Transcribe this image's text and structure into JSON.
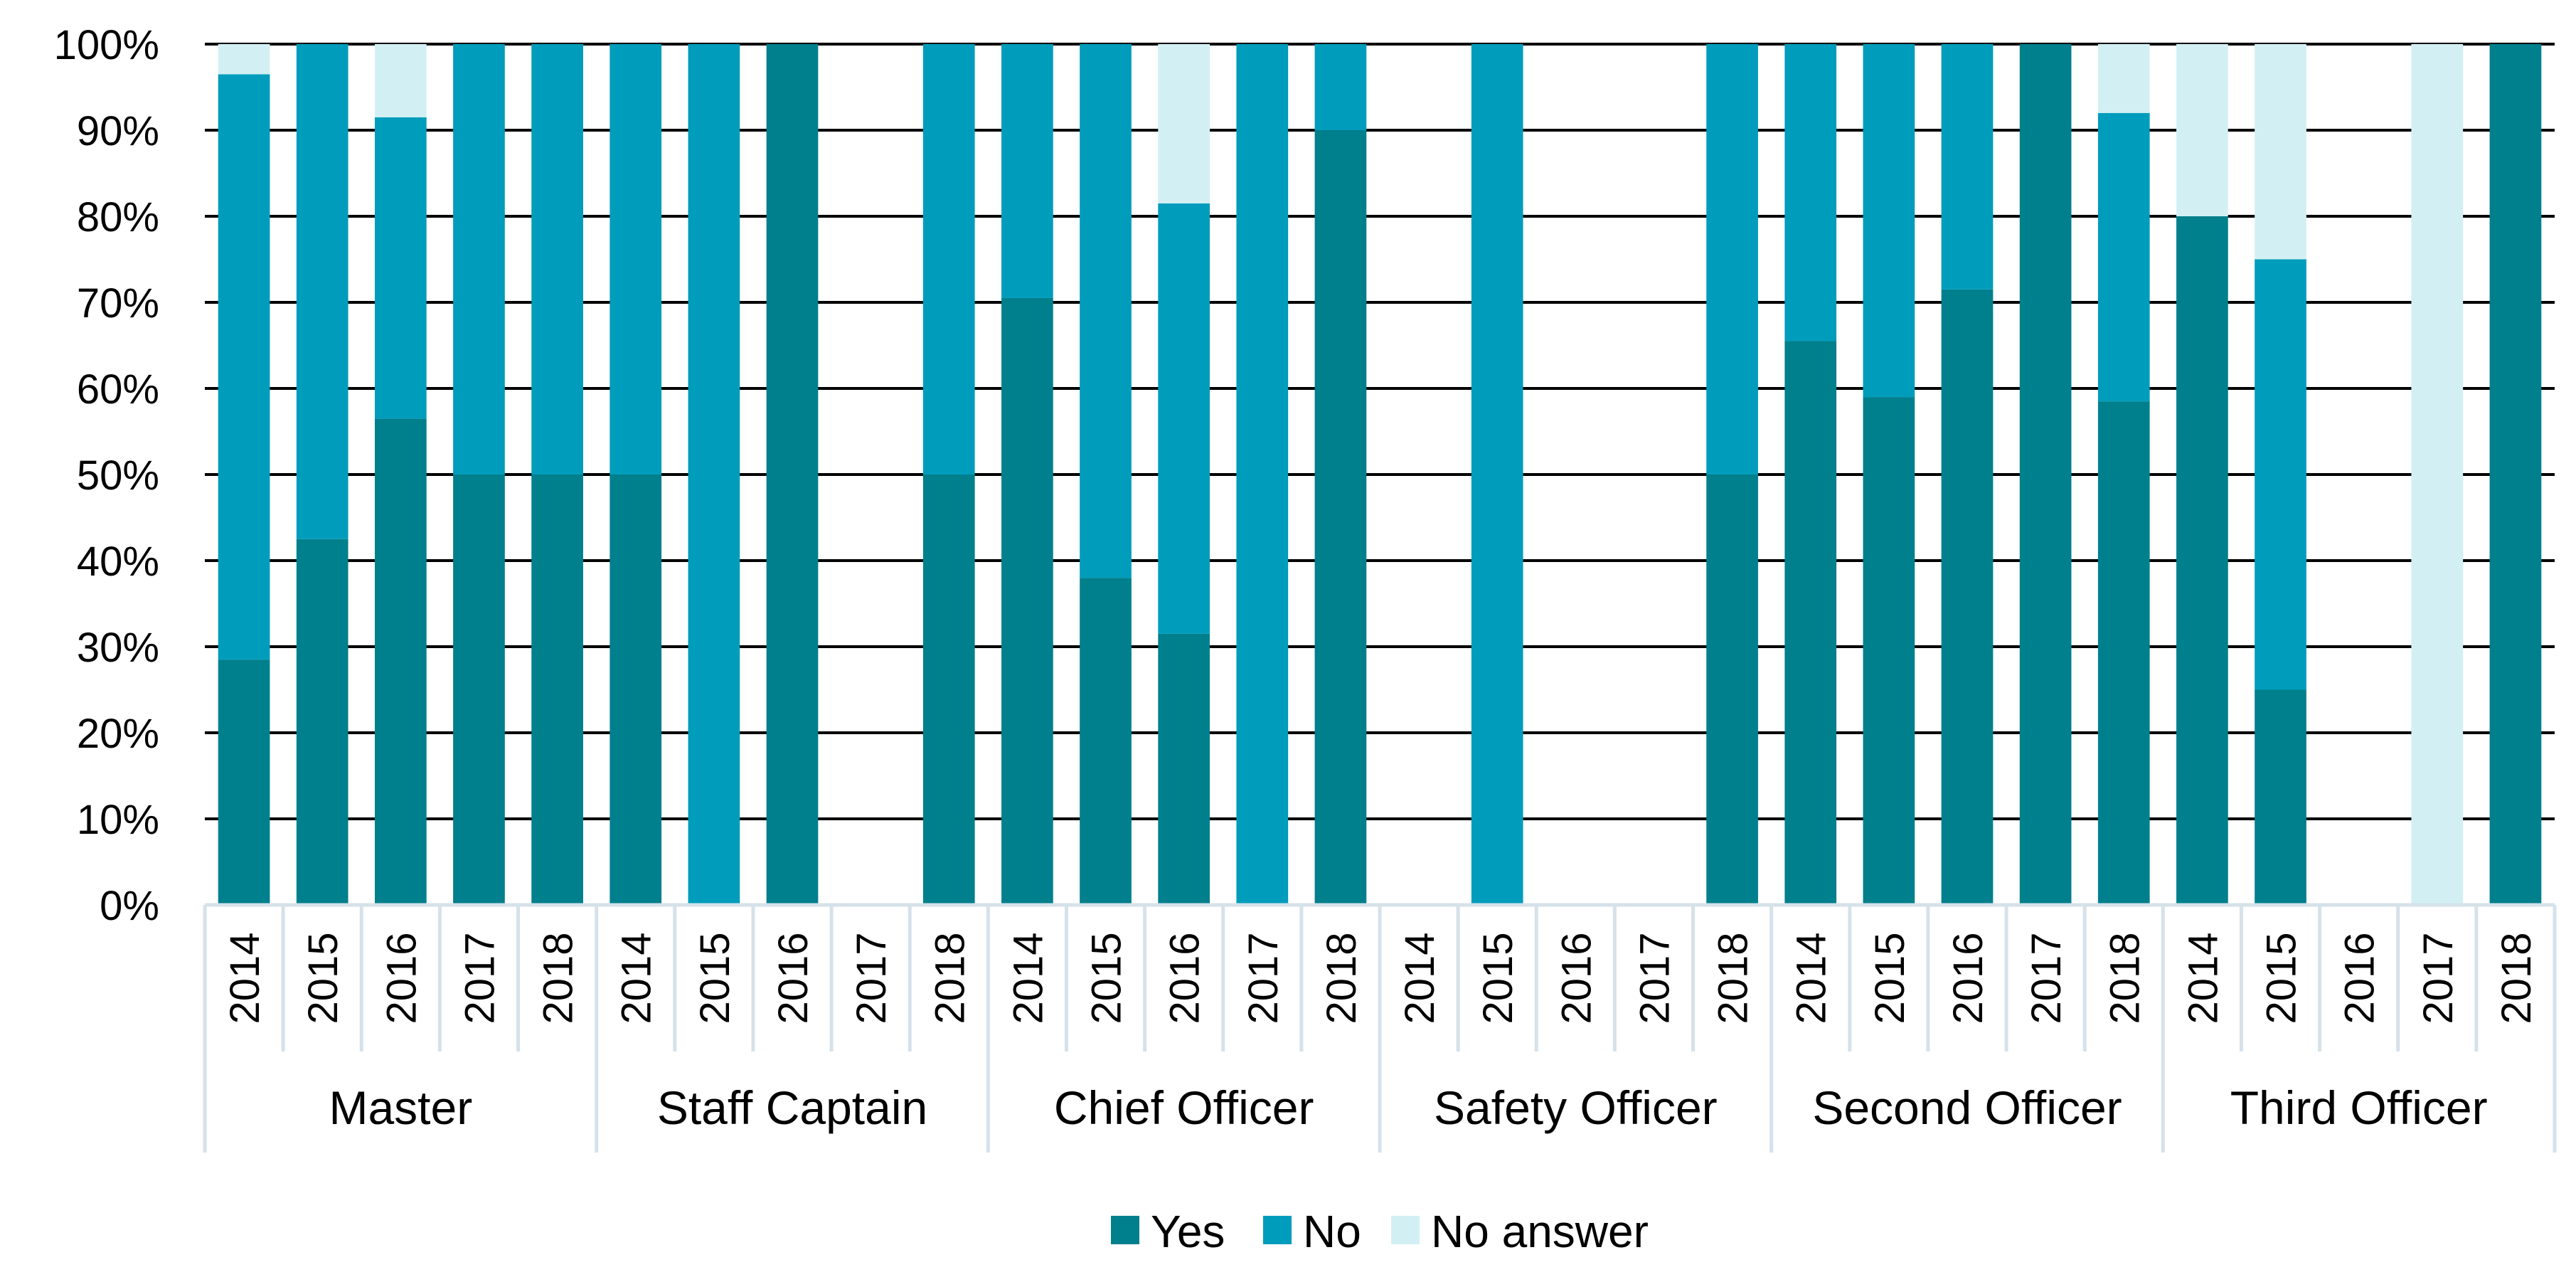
{
  "chart_data": {
    "type": "bar",
    "stacked": true,
    "title": "",
    "xlabel": "",
    "ylabel": "",
    "ylim": [
      0,
      100
    ],
    "y_ticks": [
      "0%",
      "10%",
      "20%",
      "30%",
      "40%",
      "50%",
      "60%",
      "70%",
      "80%",
      "90%",
      "100%"
    ],
    "grid": true,
    "legend_position": "bottom-center",
    "years": [
      "2014",
      "2015",
      "2016",
      "2017",
      "2018"
    ],
    "groups": [
      "Master",
      "Staff Captain",
      "Chief Officer",
      "Safety Officer",
      "Second Officer",
      "Third Officer"
    ],
    "series": [
      {
        "name": "Yes",
        "color": "#007F8C",
        "values": [
          [
            28.5,
            42.5,
            56.5,
            50,
            50
          ],
          [
            50,
            0,
            100,
            0,
            50
          ],
          [
            70.5,
            38,
            31.5,
            0,
            90
          ],
          [
            0,
            0,
            0,
            0,
            50
          ],
          [
            65.5,
            59,
            71.5,
            100,
            58.5
          ],
          [
            80,
            25,
            0,
            0,
            100
          ]
        ]
      },
      {
        "name": "No",
        "color": "#009CBC",
        "values": [
          [
            68,
            57.5,
            35,
            50,
            50
          ],
          [
            50,
            100,
            0,
            0,
            50
          ],
          [
            29.5,
            62,
            50,
            100,
            10
          ],
          [
            0,
            100,
            0,
            0,
            50
          ],
          [
            34.5,
            41,
            28.5,
            0,
            33.5
          ],
          [
            0,
            50,
            0,
            0,
            0
          ]
        ]
      },
      {
        "name": "No answer",
        "color": "#D2F0F3",
        "values": [
          [
            3.5,
            0,
            8.5,
            0,
            0
          ],
          [
            0,
            0,
            0,
            0,
            0
          ],
          [
            0,
            0,
            18.5,
            0,
            0
          ],
          [
            0,
            0,
            0,
            0,
            0
          ],
          [
            0,
            0,
            0,
            0,
            8
          ],
          [
            20,
            25,
            0,
            100,
            0
          ]
        ]
      }
    ]
  }
}
